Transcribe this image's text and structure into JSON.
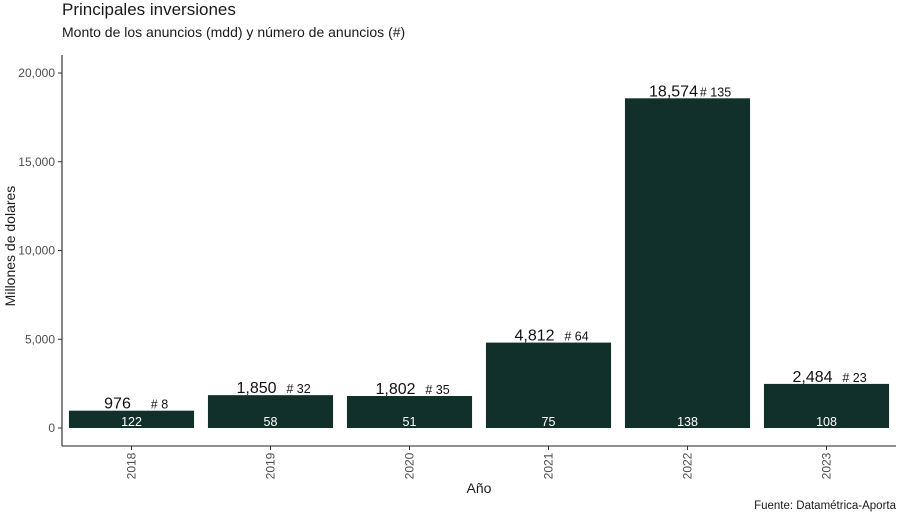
{
  "chart_data": {
    "type": "bar",
    "title": "Principales inversiones",
    "subtitle": "Monto de los anuncios (mdd) y número de anuncios (#)",
    "xlabel": "Año",
    "ylabel": "Millones de dolares",
    "categories": [
      "2018",
      "2019",
      "2020",
      "2021",
      "2022",
      "2023"
    ],
    "values": [
      976,
      1850,
      1802,
      4812,
      18574,
      2484
    ],
    "value_labels": [
      "976",
      "1,850",
      "1,802",
      "4,812",
      "18,574",
      "2,484"
    ],
    "count_labels": [
      "# 8",
      "# 32",
      "# 35",
      "# 64",
      "# 135",
      "# 23"
    ],
    "inner_labels": [
      "122",
      "58",
      "51",
      "75",
      "138",
      "108"
    ],
    "yticks": [
      0,
      5000,
      10000,
      15000,
      20000
    ],
    "ytick_labels": [
      "0",
      "5,000",
      "10,000",
      "15,000",
      "20,000"
    ],
    "ylim": [
      0,
      21000
    ],
    "bar_color": "#12302b",
    "grid": false,
    "caption": "Fuente: Datamétrica-Aporta"
  }
}
